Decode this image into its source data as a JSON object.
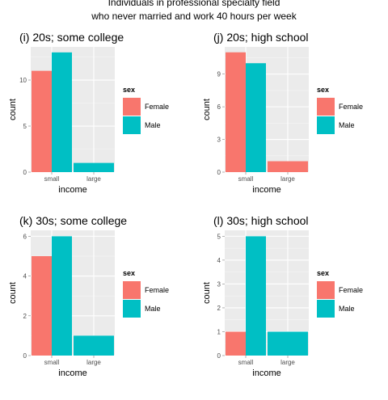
{
  "figure": {
    "title_line1": "Individuals in professional specialty field",
    "title_line2": "who never married and work 40 hours per week"
  },
  "legend": {
    "title": "sex",
    "entries": [
      {
        "label": "Female",
        "color": "#F8766D"
      },
      {
        "label": "Male",
        "color": "#00BFC4"
      }
    ]
  },
  "chart_data": [
    {
      "type": "bar",
      "title": "(i) 20s; some college",
      "xlabel": "income",
      "ylabel": "count",
      "categories": [
        "small",
        "large"
      ],
      "series": [
        {
          "name": "Female",
          "values": [
            11,
            0
          ]
        },
        {
          "name": "Male",
          "values": [
            13,
            1
          ]
        }
      ],
      "yticks": [
        0,
        5,
        10
      ],
      "ylim": [
        0,
        13.6
      ]
    },
    {
      "type": "bar",
      "title": "(j) 20s; high school",
      "xlabel": "income",
      "ylabel": "count",
      "categories": [
        "small",
        "large"
      ],
      "series": [
        {
          "name": "Female",
          "values": [
            11,
            1
          ]
        },
        {
          "name": "Male",
          "values": [
            10,
            0
          ]
        }
      ],
      "yticks": [
        0,
        3,
        6,
        9
      ],
      "ylim": [
        0,
        11.5
      ]
    },
    {
      "type": "bar",
      "title": "(k) 30s; some college",
      "xlabel": "income",
      "ylabel": "count",
      "categories": [
        "small",
        "large"
      ],
      "series": [
        {
          "name": "Female",
          "values": [
            5,
            0
          ]
        },
        {
          "name": "Male",
          "values": [
            6,
            1
          ]
        }
      ],
      "yticks": [
        0,
        2,
        4,
        6
      ],
      "ylim": [
        0,
        6.3
      ]
    },
    {
      "type": "bar",
      "title": "(l) 30s; high school",
      "xlabel": "income",
      "ylabel": "count",
      "categories": [
        "small",
        "large"
      ],
      "series": [
        {
          "name": "Female",
          "values": [
            1,
            0
          ]
        },
        {
          "name": "Male",
          "values": [
            5,
            1
          ]
        }
      ],
      "yticks": [
        0,
        1,
        2,
        3,
        4,
        5
      ],
      "ylim": [
        0,
        5.25
      ]
    }
  ]
}
